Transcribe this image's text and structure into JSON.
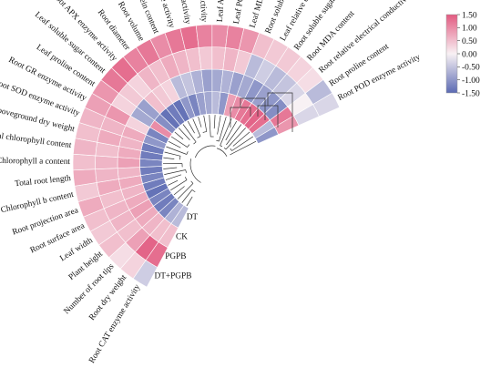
{
  "chart_data": {
    "type": "heatmap",
    "title": "",
    "layout": "circular",
    "variables": [
      "Root CAT enzyme activity",
      "Root dry weight",
      "Number of root tips",
      "Plant height",
      "Leaf width",
      "Root surface area",
      "Root projection area",
      "Chlorophyll b content",
      "Total root length",
      "Chlorophyll a content",
      "Total chlorophyll content",
      "Aboveground dry weight",
      "Root SOD enzyme activity",
      "Root GR enzyme activity",
      "Leaf proline content",
      "Leaf soluble sugar content",
      "Root APX enzyme activity",
      "Root diameter",
      "Root volume",
      "Leaf soluble protein content",
      "Leaf CAT enzyme activity",
      "Leaf SOD enzyme activity",
      "Leaf GR enzyme activity",
      "Leaf APX enzyme activity",
      "Leaf POD enzyme activity",
      "Leaf MDA content",
      "Root soluble protein content",
      "Leaf relative electrical conductivity",
      "Root soluble sugar content",
      "Root MDA content",
      "Root relative electrical conductivity",
      "Root proline content",
      "Root POD enzyme activity"
    ],
    "groups": [
      "DT",
      "CK",
      "PGPB",
      "DT+PGPB"
    ],
    "values": {
      "DT": [
        -0.6,
        -0.7,
        -1.2,
        -1.3,
        -1.2,
        -1.4,
        -1.3,
        -1.2,
        -1.3,
        -1.2,
        -1.3,
        -1.3,
        -1.0,
        -1.2,
        1.0,
        -1.1,
        -1.4,
        -1.3,
        -1.4,
        -1.0,
        -1.2,
        -0.9,
        -0.8,
        -0.6,
        -1.0,
        0.8,
        1.0,
        1.2,
        1.3,
        1.4,
        1.3,
        -0.6,
        -1.0
      ],
      "CK": [
        0.5,
        0.5,
        0.6,
        0.7,
        0.8,
        0.7,
        0.6,
        0.7,
        0.6,
        0.8,
        0.7,
        0.6,
        0.7,
        0.3,
        -0.8,
        -0.9,
        0.5,
        0.4,
        0.3,
        -0.6,
        -0.5,
        -0.7,
        -0.9,
        -0.8,
        -0.7,
        -0.9,
        -0.8,
        -1.0,
        -0.9,
        -1.0,
        -1.1,
        1.2,
        0.9
      ],
      "PGPB": [
        1.3,
        1.4,
        0.8,
        0.5,
        0.6,
        0.6,
        0.5,
        0.7,
        0.6,
        0.6,
        0.5,
        0.7,
        0.6,
        0.9,
        0.3,
        0.4,
        0.3,
        0.6,
        0.5,
        0.7,
        0.6,
        0.5,
        0.4,
        0.5,
        0.6,
        0.4,
        -0.6,
        -0.4,
        -0.6,
        -0.5,
        -0.3,
        0.0,
        -0.3
      ],
      "DT+PGPB": [
        -0.4,
        0.3,
        0.2,
        0.5,
        0.4,
        0.5,
        0.7,
        0.4,
        0.7,
        0.5,
        0.6,
        0.5,
        0.6,
        0.8,
        0.9,
        1.2,
        1.3,
        1.1,
        1.2,
        1.0,
        1.2,
        1.3,
        1.1,
        1.0,
        1.1,
        0.9,
        0.5,
        0.4,
        0.4,
        0.3,
        0.2,
        -0.6,
        -0.3
      ]
    },
    "color_scale": {
      "min": -1.5,
      "max": 1.5,
      "ticks": [
        "1.50",
        "1.00",
        "0.50",
        "0.00",
        "-0.50",
        "-1.00",
        "-1.50"
      ],
      "colors": [
        "#5b6ab3",
        "#f8f1f4",
        "#e25a80"
      ]
    },
    "dendrogram": true,
    "legend_position": "top-right"
  }
}
